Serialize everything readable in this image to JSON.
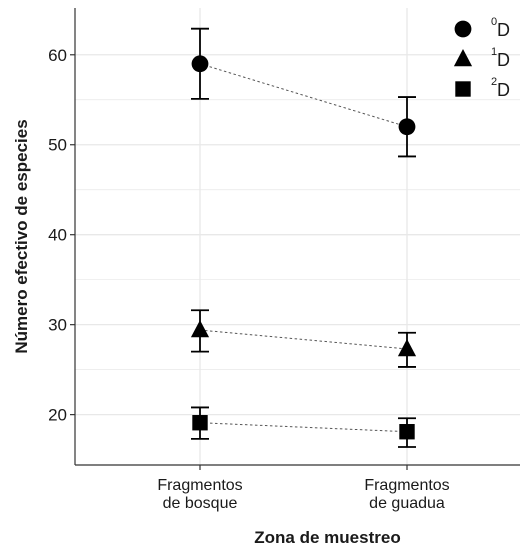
{
  "chart_data": {
    "type": "scatter",
    "xlabel": "Zona de muestreo",
    "ylabel": "Número efectivo de especies",
    "categories": [
      [
        "Fragmentos",
        "de bosque"
      ],
      [
        "Fragmentos",
        "de guadua"
      ]
    ],
    "ylim": [
      14.4,
      65.2
    ],
    "yticks": [
      20,
      30,
      40,
      50,
      60
    ],
    "grid": true,
    "legend_position": "top-right",
    "series": [
      {
        "name": "D",
        "superscript": "0",
        "marker": "circle",
        "values": [
          59.0,
          52.0
        ],
        "lower": [
          55.1,
          48.7
        ],
        "upper": [
          62.9,
          55.3
        ]
      },
      {
        "name": "D",
        "superscript": "1",
        "marker": "triangle",
        "values": [
          29.4,
          27.3
        ],
        "lower": [
          27.0,
          25.3
        ],
        "upper": [
          31.6,
          29.1
        ]
      },
      {
        "name": "D",
        "superscript": "2",
        "marker": "square",
        "values": [
          19.1,
          18.1
        ],
        "lower": [
          17.3,
          16.4
        ],
        "upper": [
          20.8,
          19.6
        ]
      }
    ],
    "colors": {
      "marker": "#000000",
      "grid": "#e8e8e8",
      "axis": "#333333",
      "connector": "#555555"
    }
  }
}
